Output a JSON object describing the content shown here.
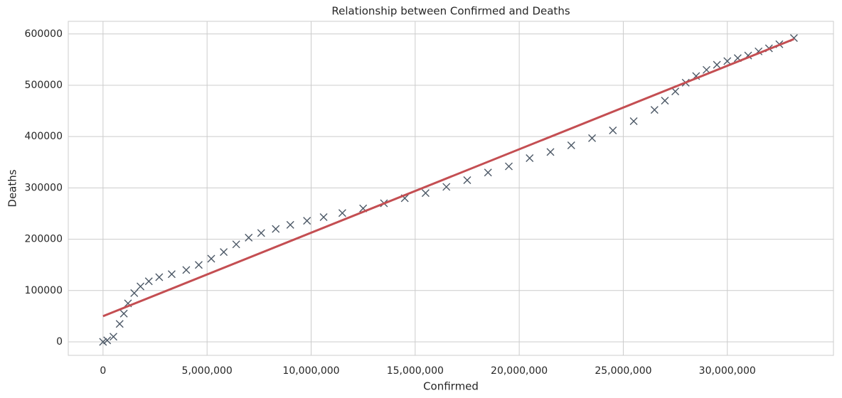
{
  "chart_data": {
    "type": "scatter",
    "title": "Relationship between Confirmed and Deaths",
    "x_label": "Confirmed",
    "y_label": "Deaths",
    "marker": "x",
    "color": "#4c5866",
    "x": [
      0,
      200000,
      500000,
      800000,
      1000000,
      1200000,
      1500000,
      1800000,
      2200000,
      2700000,
      3300000,
      4000000,
      4600000,
      5200000,
      5800000,
      6400000,
      7000000,
      7600000,
      8300000,
      9000000,
      9800000,
      10600000,
      11500000,
      12500000,
      13500000,
      14500000,
      15500000,
      16500000,
      17500000,
      18500000,
      19500000,
      20500000,
      21500000,
      22500000,
      23500000,
      24500000,
      25500000,
      26500000,
      27000000,
      27500000,
      28000000,
      28500000,
      29000000,
      29500000,
      30000000,
      30500000,
      31000000,
      31500000,
      32000000,
      32500000,
      33200000
    ],
    "values": [
      0,
      3000,
      10000,
      35000,
      55000,
      75000,
      95000,
      108000,
      118000,
      126000,
      132000,
      140000,
      150000,
      162000,
      175000,
      190000,
      203000,
      212000,
      220000,
      228000,
      236000,
      243000,
      251000,
      260000,
      270000,
      280000,
      290000,
      302000,
      315000,
      330000,
      342000,
      358000,
      370000,
      383000,
      397000,
      412000,
      430000,
      452000,
      470000,
      488000,
      505000,
      518000,
      530000,
      540000,
      547000,
      553000,
      558000,
      566000,
      572000,
      580000,
      592000
    ],
    "fit": {
      "x": [
        0,
        33200000
      ],
      "values": [
        50000,
        590000
      ],
      "color": "#c44e52"
    },
    "xlim": [
      -1670000,
      35100000
    ],
    "ylim": [
      -26300,
      624600
    ],
    "xticks": [
      0,
      {
        "value": 5000000,
        "label": "5,000,000"
      },
      {
        "value": 10000000,
        "label": "10,000,000"
      },
      {
        "value": 15000000,
        "label": "15,000,000"
      },
      {
        "value": 20000000,
        "label": "20,000,000"
      },
      {
        "value": 25000000,
        "label": "25,000,000"
      },
      {
        "value": 30000000,
        "label": "30,000,000"
      }
    ],
    "yticks": [
      0,
      100000,
      200000,
      300000,
      400000,
      500000,
      600000
    ],
    "grid": true
  }
}
